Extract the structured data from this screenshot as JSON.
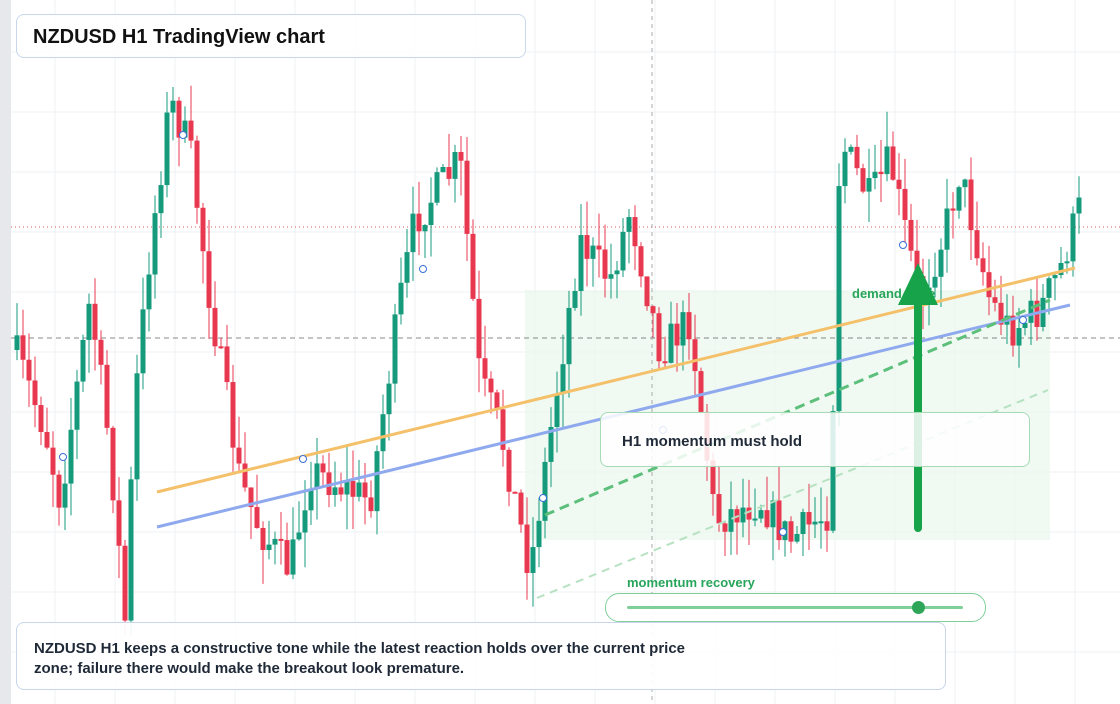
{
  "header": {
    "title": "NZDUSD H1 TradingView chart"
  },
  "annotations": {
    "zone_label": "demand zone",
    "callout": "H1 momentum must hold",
    "slider_label": "momentum recovery"
  },
  "caption": {
    "text": "NZDUSD H1 keeps a constructive tone while the latest reaction holds over the current price zone; failure there would make the breakout look premature."
  }
}
